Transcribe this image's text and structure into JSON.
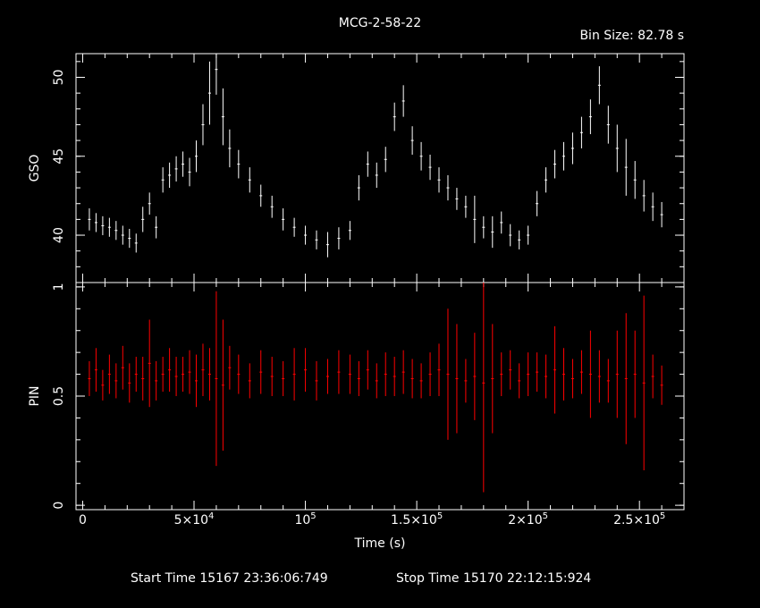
{
  "title": "MCG-2-58-22",
  "bin_size_text": "Bin Size: 82.78 s",
  "footer": {
    "start_time": "Start Time 15167 23:36:06:749",
    "stop_time": "Stop Time 15170 22:12:15:924"
  },
  "colors": {
    "background": "#000000",
    "gso": "#ffffff",
    "pin": "#ff0000",
    "frame": "#ffffff"
  },
  "chart_data": [
    {
      "type": "scatter",
      "panel": "top",
      "ylabel": "GSO",
      "xlim": [
        -3000,
        270000
      ],
      "ylim": [
        37,
        51.5
      ],
      "yticks": [
        40,
        45,
        50
      ],
      "ytick_labels": [
        "40",
        "45",
        "50"
      ],
      "x": [
        3000,
        6000,
        9000,
        12000,
        15000,
        18000,
        21000,
        24000,
        27000,
        30000,
        33000,
        36000,
        39000,
        42000,
        45000,
        48000,
        51000,
        54000,
        57000,
        60000,
        63000,
        66000,
        70000,
        75000,
        80000,
        85000,
        90000,
        95000,
        100000,
        105000,
        110000,
        115000,
        120000,
        124000,
        128000,
        132000,
        136000,
        140000,
        144000,
        148000,
        152000,
        156000,
        160000,
        164000,
        168000,
        172000,
        176000,
        180000,
        184000,
        188000,
        192000,
        196000,
        200000,
        204000,
        208000,
        212000,
        216000,
        220000,
        224000,
        228000,
        232000,
        236000,
        240000,
        244000,
        248000,
        252000,
        256000,
        260000
      ],
      "values": [
        41.0,
        40.8,
        40.6,
        40.5,
        40.3,
        40.0,
        39.8,
        39.5,
        41.0,
        42.0,
        40.5,
        43.5,
        43.8,
        44.2,
        44.5,
        44.0,
        45.0,
        47.0,
        49.0,
        50.5,
        47.5,
        45.5,
        44.5,
        43.5,
        42.5,
        41.8,
        41.0,
        40.5,
        40.0,
        39.7,
        39.4,
        39.8,
        40.3,
        43.0,
        44.5,
        43.8,
        44.8,
        47.5,
        48.5,
        46.0,
        45.0,
        44.3,
        43.5,
        43.0,
        42.3,
        41.8,
        41.0,
        40.5,
        40.2,
        40.8,
        40.0,
        39.7,
        40.0,
        42.0,
        43.5,
        44.5,
        45.0,
        45.5,
        46.5,
        47.5,
        49.5,
        47.0,
        45.5,
        44.3,
        43.5,
        42.5,
        41.8,
        41.3
      ],
      "errors": [
        0.7,
        0.6,
        0.6,
        0.6,
        0.6,
        0.6,
        0.6,
        0.6,
        0.8,
        0.7,
        0.7,
        0.8,
        0.8,
        0.8,
        0.8,
        0.9,
        1.0,
        1.3,
        2.0,
        1.6,
        1.8,
        1.2,
        0.9,
        0.8,
        0.7,
        0.7,
        0.7,
        0.6,
        0.6,
        0.6,
        0.8,
        0.7,
        0.6,
        0.8,
        0.8,
        0.8,
        0.8,
        0.9,
        1.0,
        0.9,
        0.9,
        0.8,
        0.8,
        0.8,
        0.7,
        0.7,
        1.5,
        0.7,
        1.0,
        0.7,
        0.7,
        0.6,
        0.6,
        0.8,
        0.8,
        0.9,
        0.9,
        1.0,
        1.0,
        1.1,
        1.2,
        1.2,
        1.5,
        1.8,
        1.2,
        1.0,
        0.9,
        0.8
      ]
    },
    {
      "type": "scatter",
      "panel": "bottom",
      "ylabel": "PIN",
      "xlabel": "Time (s)",
      "xlim": [
        -3000,
        270000
      ],
      "ylim": [
        -0.02,
        1.02
      ],
      "yticks": [
        0,
        0.5,
        1
      ],
      "ytick_labels": [
        "0",
        "0.5",
        "1"
      ],
      "xticks": [
        0,
        50000,
        100000,
        150000,
        200000,
        250000
      ],
      "xtick_labels": [
        {
          "base": "0",
          "exp": ""
        },
        {
          "base": "5×10",
          "exp": "4"
        },
        {
          "base": "10",
          "exp": "5"
        },
        {
          "base": "1.5×10",
          "exp": "5"
        },
        {
          "base": "2×10",
          "exp": "5"
        },
        {
          "base": "2.5×10",
          "exp": "5"
        }
      ],
      "x": [
        3000,
        6000,
        9000,
        12000,
        15000,
        18000,
        21000,
        24000,
        27000,
        30000,
        33000,
        36000,
        39000,
        42000,
        45000,
        48000,
        51000,
        54000,
        57000,
        60000,
        63000,
        66000,
        70000,
        75000,
        80000,
        85000,
        90000,
        95000,
        100000,
        105000,
        110000,
        115000,
        120000,
        124000,
        128000,
        132000,
        136000,
        140000,
        144000,
        148000,
        152000,
        156000,
        160000,
        164000,
        168000,
        172000,
        176000,
        180000,
        184000,
        188000,
        192000,
        196000,
        200000,
        204000,
        208000,
        212000,
        216000,
        220000,
        224000,
        228000,
        232000,
        236000,
        240000,
        244000,
        248000,
        252000,
        256000,
        260000
      ],
      "values": [
        0.58,
        0.62,
        0.55,
        0.6,
        0.57,
        0.63,
        0.56,
        0.6,
        0.58,
        0.65,
        0.57,
        0.6,
        0.62,
        0.59,
        0.6,
        0.61,
        0.57,
        0.62,
        0.6,
        0.58,
        0.55,
        0.63,
        0.6,
        0.57,
        0.61,
        0.59,
        0.58,
        0.6,
        0.62,
        0.57,
        0.59,
        0.61,
        0.6,
        0.58,
        0.62,
        0.57,
        0.6,
        0.59,
        0.61,
        0.58,
        0.57,
        0.6,
        0.62,
        0.6,
        0.58,
        0.57,
        0.59,
        0.56,
        0.58,
        0.6,
        0.62,
        0.57,
        0.6,
        0.61,
        0.59,
        0.62,
        0.6,
        0.58,
        0.61,
        0.6,
        0.59,
        0.57,
        0.6,
        0.58,
        0.6,
        0.56,
        0.59,
        0.55
      ],
      "errors": [
        0.08,
        0.1,
        0.07,
        0.09,
        0.08,
        0.1,
        0.09,
        0.08,
        0.1,
        0.2,
        0.09,
        0.08,
        0.1,
        0.09,
        0.08,
        0.1,
        0.12,
        0.12,
        0.12,
        0.4,
        0.3,
        0.1,
        0.09,
        0.08,
        0.1,
        0.09,
        0.08,
        0.12,
        0.1,
        0.09,
        0.08,
        0.1,
        0.09,
        0.08,
        0.09,
        0.08,
        0.1,
        0.09,
        0.1,
        0.09,
        0.08,
        0.1,
        0.12,
        0.3,
        0.25,
        0.1,
        0.2,
        0.5,
        0.25,
        0.1,
        0.09,
        0.08,
        0.1,
        0.09,
        0.1,
        0.2,
        0.12,
        0.09,
        0.1,
        0.2,
        0.12,
        0.1,
        0.2,
        0.3,
        0.2,
        0.4,
        0.1,
        0.09
      ]
    }
  ]
}
